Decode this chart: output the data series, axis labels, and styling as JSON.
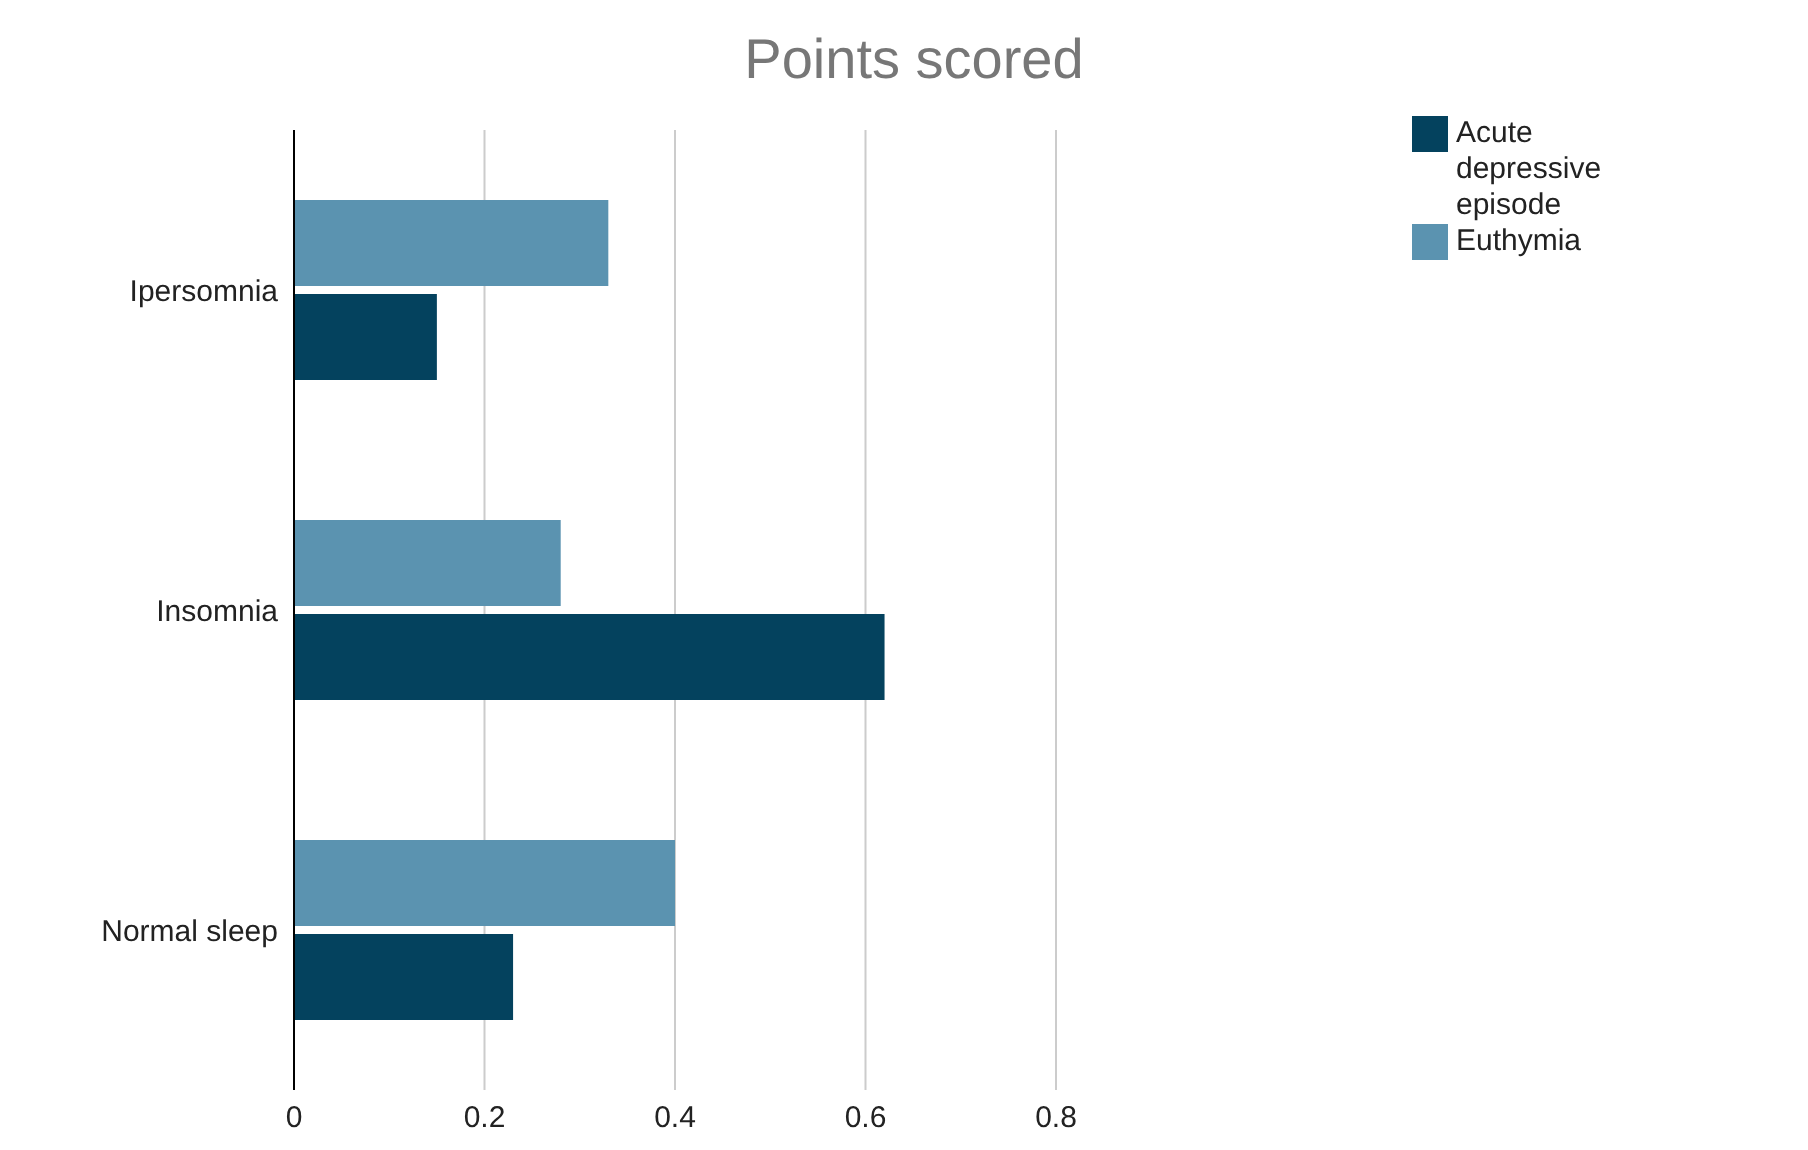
{
  "chart_data": {
    "type": "bar",
    "orientation": "horizontal",
    "title": "Points scored",
    "categories": [
      "Ipersomnia",
      "Insomnia",
      "Normal sleep"
    ],
    "series": [
      {
        "name": "Euthymia",
        "color": "#5b93b0",
        "values": [
          0.33,
          0.28,
          0.4
        ]
      },
      {
        "name": "Acute depressive episode",
        "color": "#04425e",
        "values": [
          0.15,
          0.62,
          0.23
        ]
      }
    ],
    "xlim": [
      0,
      0.8
    ],
    "xticks": [
      0,
      0.2,
      0.4,
      0.6,
      0.8
    ],
    "grid": "x",
    "legend": "top right"
  }
}
